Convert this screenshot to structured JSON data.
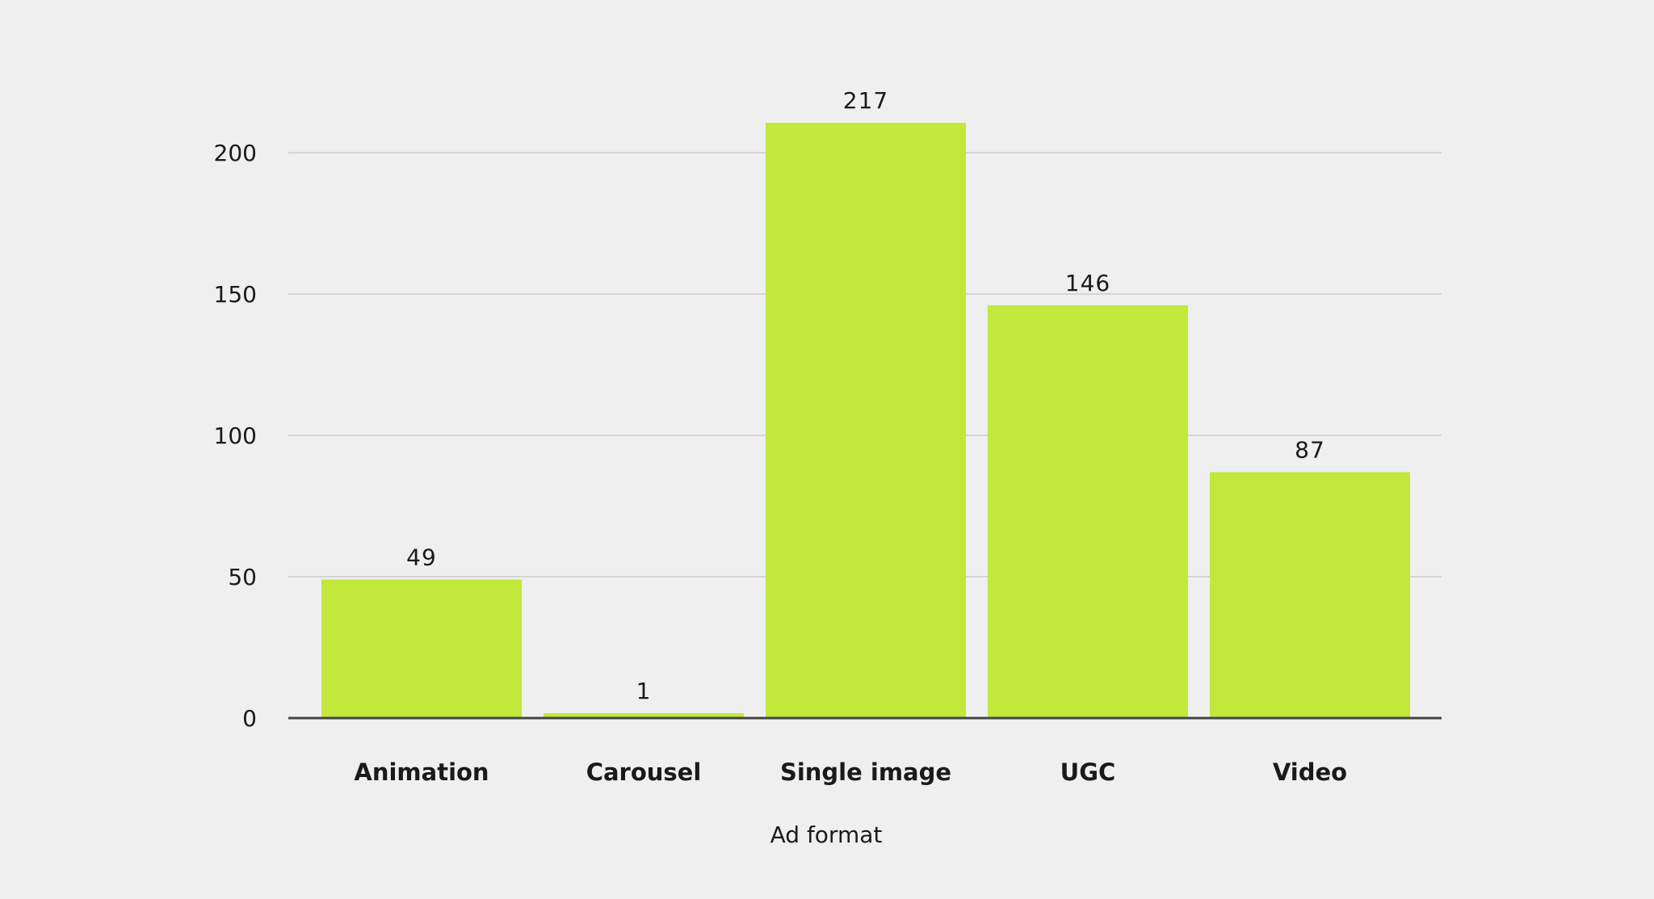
{
  "chart_data": {
    "type": "bar",
    "xlabel": "Ad format",
    "ylabel": "",
    "categories": [
      "Animation",
      "Carousel",
      "Single image",
      "UGC",
      "Video"
    ],
    "values": [
      49,
      1,
      217,
      146,
      87
    ],
    "data_labels": [
      "49",
      "1",
      "217",
      "146",
      "87"
    ],
    "yticks": [
      0,
      50,
      100,
      150,
      200
    ],
    "ylim": [
      0,
      200
    ],
    "grid": true,
    "legend": "none",
    "bar_color": "#c2e83b",
    "grid_color": "#d4d4d4",
    "axis_color": "#444444"
  }
}
